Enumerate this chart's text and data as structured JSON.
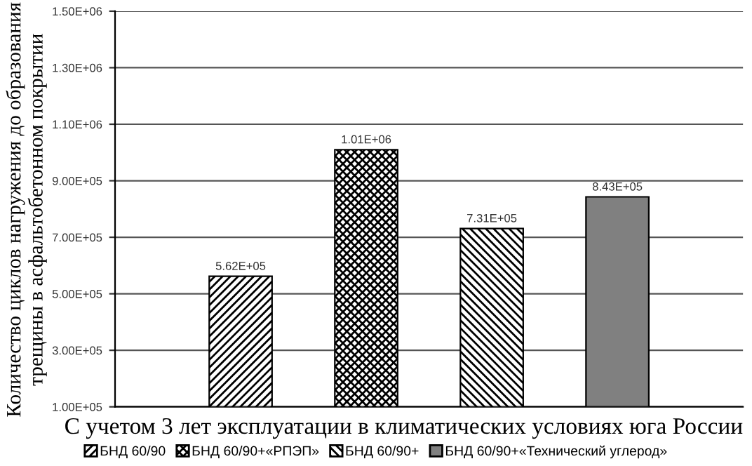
{
  "chart_data": {
    "type": "bar",
    "xlabel": "С учетом 3 лет эксплуатации в климатических условиях юга России",
    "ylabel": "Количество циклов нагружения до образования трещины в асфальтобетонном покрытии",
    "categories": [
      null
    ],
    "series": [
      {
        "name": "БНД 60/90",
        "color": "#000000",
        "values": [
          562000
        ],
        "value_labels": [
          "5.62E+05"
        ]
      },
      {
        "name": "БНД 60/90+«РПЭП»",
        "color": "#000000",
        "values": [
          1010000
        ],
        "value_labels": [
          "1.01E+06"
        ]
      },
      {
        "name": "БНД 60/90+",
        "color": "#000000",
        "values": [
          731000
        ],
        "value_labels": [
          "7.31E+05"
        ]
      },
      {
        "name": "БНД 60/90+«Технический углерод»",
        "color": "#808080",
        "values": [
          843000
        ],
        "value_labels": [
          "8.43E+05"
        ]
      }
    ],
    "ylim": [
      100000,
      1500000
    ],
    "yticks": [
      {
        "value": 100000,
        "label": "1.00E+05"
      },
      {
        "value": 300000,
        "label": "3.00E+05"
      },
      {
        "value": 500000,
        "label": "5.00E+05"
      },
      {
        "value": 700000,
        "label": "7.00E+05"
      },
      {
        "value": 900000,
        "label": "9.00E+05"
      },
      {
        "value": 1100000,
        "label": "1.10E+06"
      },
      {
        "value": 1300000,
        "label": "1.30E+06"
      },
      {
        "value": 1500000,
        "label": "1.50E+06"
      }
    ],
    "grid": "y",
    "legend": "bottom"
  }
}
